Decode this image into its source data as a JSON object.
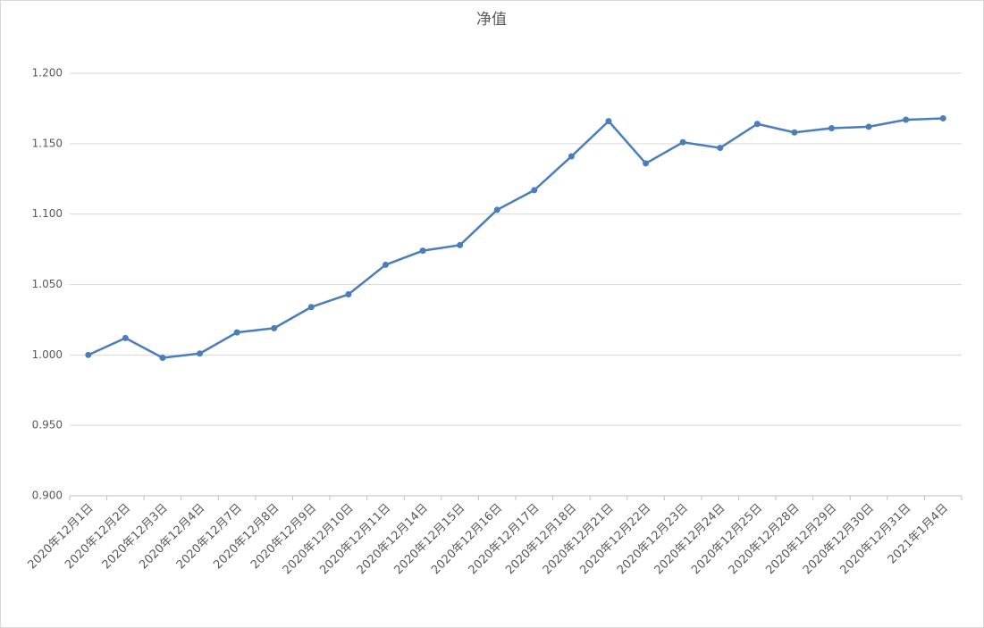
{
  "chart_data": {
    "type": "line",
    "title": "净值",
    "categories": [
      "2020年12月1日",
      "2020年12月2日",
      "2020年12月3日",
      "2020年12月4日",
      "2020年12月7日",
      "2020年12月8日",
      "2020年12月9日",
      "2020年12月10日",
      "2020年12月11日",
      "2020年12月14日",
      "2020年12月15日",
      "2020年12月16日",
      "2020年12月17日",
      "2020年12月18日",
      "2020年12月21日",
      "2020年12月22日",
      "2020年12月23日",
      "2020年12月24日",
      "2020年12月25日",
      "2020年12月28日",
      "2020年12月29日",
      "2020年12月30日",
      "2020年12月31日",
      "2021年1月4日"
    ],
    "values": [
      1.0,
      1.012,
      0.998,
      1.001,
      1.016,
      1.019,
      1.034,
      1.043,
      1.064,
      1.074,
      1.078,
      1.103,
      1.117,
      1.141,
      1.166,
      1.136,
      1.151,
      1.147,
      1.164,
      1.158,
      1.161,
      1.162,
      1.167,
      1.168
    ],
    "color": "#4a7ebb",
    "ylim": [
      0.9,
      1.2
    ],
    "yticks": [
      {
        "value": 0.9,
        "label": "0.900"
      },
      {
        "value": 0.95,
        "label": "0.950"
      },
      {
        "value": 1.0,
        "label": "1.000"
      },
      {
        "value": 1.05,
        "label": "1.050"
      },
      {
        "value": 1.1,
        "label": "1.100"
      },
      {
        "value": 1.15,
        "label": "1.150"
      },
      {
        "value": 1.2,
        "label": "1.200"
      }
    ],
    "grid": true
  }
}
